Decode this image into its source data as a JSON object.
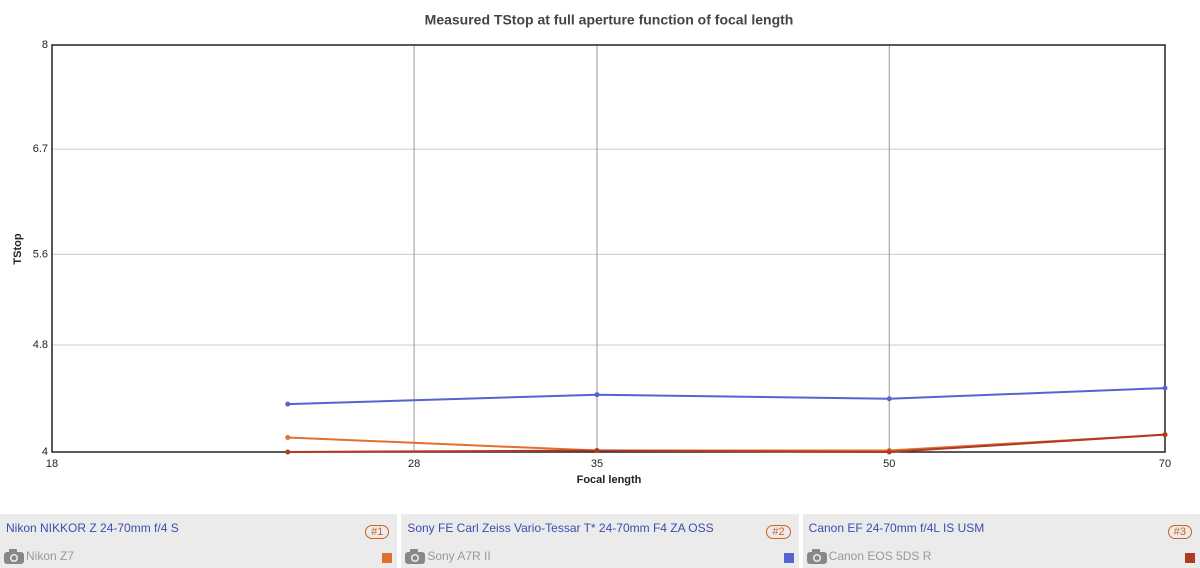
{
  "chart_data": {
    "type": "line",
    "title": "Measured TStop at full aperture function of focal length",
    "x_label": "Focal length",
    "y_label": "TStop",
    "x": [
      24,
      35,
      50,
      70
    ],
    "xlim": [
      18,
      70
    ],
    "xticks": [
      18,
      28,
      35,
      50,
      70
    ],
    "xscale": "log",
    "ylim": [
      4,
      8
    ],
    "yticks": [
      4,
      4.8,
      5.6,
      6.7,
      8
    ],
    "yscale": "log",
    "grid": true,
    "series": [
      {
        "name": "Nikon NIKKOR Z 24-70mm f/4 S",
        "camera": "Nikon Z7",
        "tag": "#1",
        "color": "#e07030",
        "values": [
          4.1,
          4.01,
          4.01,
          4.12
        ]
      },
      {
        "name": "Sony FE Carl Zeiss Vario-Tessar T* 24-70mm F4 ZA OSS",
        "camera": "Sony A7R II",
        "tag": "#2",
        "color": "#5563d3",
        "values": [
          4.34,
          4.41,
          4.38,
          4.46
        ]
      },
      {
        "name": "Canon EF 24-70mm f/4L IS USM",
        "camera": "Canon EOS 5DS R",
        "tag": "#3",
        "color": "#b03a22",
        "values": [
          4.0,
          4.01,
          4.0,
          4.12
        ]
      }
    ]
  }
}
